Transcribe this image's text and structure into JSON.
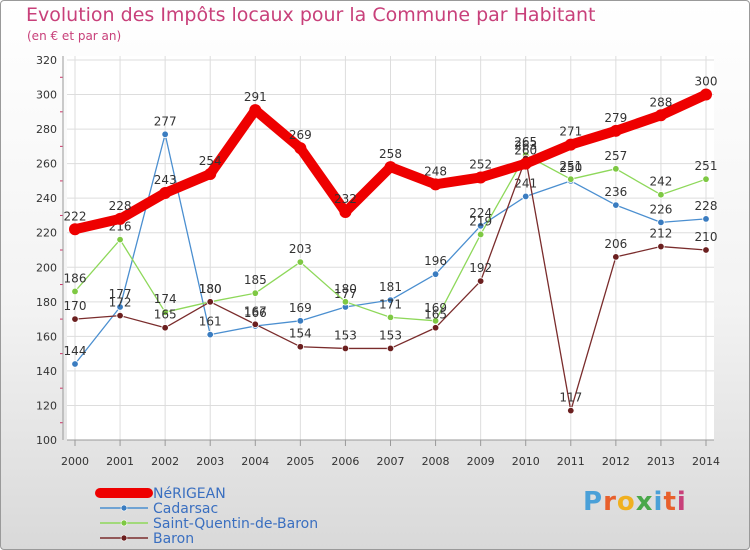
{
  "chart_data": {
    "type": "line",
    "title": "Evolution des Impôts locaux pour la Commune par Habitant",
    "subtitle": "(en € et par an)",
    "categories": [
      "2000",
      "2001",
      "2002",
      "2003",
      "2004",
      "2005",
      "2006",
      "2007",
      "2008",
      "2009",
      "2010",
      "2011",
      "2012",
      "2013",
      "2014"
    ],
    "ylim": [
      100,
      320
    ],
    "yticks": [
      100,
      120,
      140,
      160,
      180,
      200,
      220,
      240,
      260,
      280,
      300,
      320
    ],
    "series": [
      {
        "name": "NéRIGEAN",
        "color": "#ee0000",
        "emphasis": true,
        "values": [
          222,
          228,
          243,
          254,
          291,
          269,
          232,
          258,
          248,
          252,
          260,
          271,
          279,
          288,
          300
        ]
      },
      {
        "name": "Cadarsac",
        "color": "#4b8fd0",
        "marker": "#3a7cc0",
        "values": [
          144,
          177,
          277,
          161,
          166,
          169,
          177,
          181,
          196,
          224,
          241,
          250,
          236,
          226,
          228
        ]
      },
      {
        "name": "Saint-Quentin-de-Baron",
        "color": "#8ed85a",
        "marker": "#7ec843",
        "values": [
          186,
          216,
          174,
          180,
          185,
          203,
          180,
          171,
          169,
          219,
          265,
          251,
          257,
          242,
          251
        ]
      },
      {
        "name": "Baron",
        "color": "#7a2c2c",
        "marker": "#6b1f1f",
        "values": [
          170,
          172,
          165,
          180,
          167,
          154,
          153,
          153,
          165,
          192,
          263,
          117,
          206,
          212,
          210
        ]
      }
    ],
    "grid": true,
    "legend_position": "bottom-left"
  },
  "logo": {
    "p": "P",
    "r": "r",
    "o": "o",
    "x": "x",
    "i": "i",
    "t": "t",
    "i2": "i"
  }
}
